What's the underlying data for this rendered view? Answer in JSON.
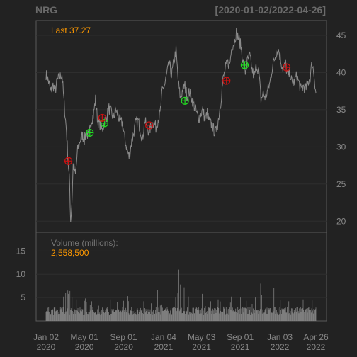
{
  "header": {
    "symbol": "NRG",
    "range": "[2020-01-02/2022-04-26]"
  },
  "price_panel": {
    "last_label": "Last 37.27"
  },
  "volume_panel": {
    "label": "Volume (millions):",
    "last_value": "2,558,500"
  },
  "colors": {
    "background": "#222222",
    "price_line": "#8a8a8a",
    "volume_bars": "#8a8a8a",
    "accent": "#ff9900",
    "buy_marker": "#22dd22",
    "sell_marker": "#cc1111",
    "axis_text": "#888888"
  },
  "chart_data": [
    {
      "type": "line",
      "name": "price",
      "ylim": [
        18.5,
        47
      ],
      "yticks": [
        20,
        25,
        30,
        35,
        40,
        45
      ],
      "x_dates": [
        "2020-01-02",
        "2020-05-01",
        "2020-09-01",
        "2021-01-04",
        "2021-05-03",
        "2021-09-01",
        "2022-01-03",
        "2022-04-26"
      ],
      "x_tick_labels": [
        {
          "date": "2020-01-02",
          "month": "Jan 02",
          "year": "2020"
        },
        {
          "date": "2020-05-01",
          "month": "May 01",
          "year": "2020"
        },
        {
          "date": "2020-09-01",
          "month": "Sep 01",
          "year": "2020"
        },
        {
          "date": "2021-01-04",
          "month": "Jan 04",
          "year": "2021"
        },
        {
          "date": "2021-05-03",
          "month": "May 03",
          "year": "2021"
        },
        {
          "date": "2021-09-01",
          "month": "Sep 01",
          "year": "2021"
        },
        {
          "date": "2022-01-03",
          "month": "Jan 03",
          "year": "2022"
        },
        {
          "date": "2022-04-26",
          "month": "Apr 26",
          "year": "2022"
        }
      ],
      "points": [
        [
          "2020-01-02",
          39.8
        ],
        [
          "2020-01-10",
          38.8
        ],
        [
          "2020-01-17",
          37.4
        ],
        [
          "2020-01-24",
          38.3
        ],
        [
          "2020-01-31",
          37.6
        ],
        [
          "2020-02-07",
          39.0
        ],
        [
          "2020-02-14",
          39.4
        ],
        [
          "2020-02-21",
          39.8
        ],
        [
          "2020-02-28",
          35.6
        ],
        [
          "2020-03-06",
          32.2
        ],
        [
          "2020-03-11",
          28.2
        ],
        [
          "2020-03-16",
          24.8
        ],
        [
          "2020-03-19",
          20.0
        ],
        [
          "2020-03-23",
          22.5
        ],
        [
          "2020-03-27",
          27.6
        ],
        [
          "2020-04-03",
          26.2
        ],
        [
          "2020-04-10",
          29.6
        ],
        [
          "2020-04-17",
          30.8
        ],
        [
          "2020-04-24",
          31.6
        ],
        [
          "2020-05-01",
          31.0
        ],
        [
          "2020-05-08",
          32.0
        ],
        [
          "2020-05-15",
          31.2
        ],
        [
          "2020-05-22",
          33.5
        ],
        [
          "2020-05-29",
          34.2
        ],
        [
          "2020-06-05",
          36.4
        ],
        [
          "2020-06-12",
          33.4
        ],
        [
          "2020-06-19",
          33.0
        ],
        [
          "2020-06-26",
          32.2
        ],
        [
          "2020-07-03",
          33.4
        ],
        [
          "2020-07-10",
          34.1
        ],
        [
          "2020-07-17",
          35.2
        ],
        [
          "2020-07-24",
          34.6
        ],
        [
          "2020-07-31",
          33.9
        ],
        [
          "2020-08-07",
          35.0
        ],
        [
          "2020-08-14",
          34.3
        ],
        [
          "2020-08-21",
          33.4
        ],
        [
          "2020-08-28",
          33.2
        ],
        [
          "2020-09-04",
          31.2
        ],
        [
          "2020-09-11",
          29.8
        ],
        [
          "2020-09-18",
          28.6
        ],
        [
          "2020-09-25",
          30.5
        ],
        [
          "2020-10-02",
          31.8
        ],
        [
          "2020-10-09",
          33.2
        ],
        [
          "2020-10-16",
          33.6
        ],
        [
          "2020-10-23",
          32.4
        ],
        [
          "2020-10-30",
          31.0
        ],
        [
          "2020-11-06",
          33.6
        ],
        [
          "2020-11-13",
          32.6
        ],
        [
          "2020-11-20",
          32.0
        ],
        [
          "2020-11-27",
          33.0
        ],
        [
          "2020-12-04",
          33.4
        ],
        [
          "2020-12-11",
          32.6
        ],
        [
          "2020-12-18",
          33.8
        ],
        [
          "2020-12-24",
          34.4
        ],
        [
          "2020-12-31",
          37.6
        ],
        [
          "2021-01-08",
          38.4
        ],
        [
          "2021-01-15",
          40.0
        ],
        [
          "2021-01-22",
          41.2
        ],
        [
          "2021-01-29",
          39.6
        ],
        [
          "2021-02-05",
          41.4
        ],
        [
          "2021-02-12",
          43.0
        ],
        [
          "2021-02-19",
          38.8
        ],
        [
          "2021-02-26",
          36.4
        ],
        [
          "2021-03-05",
          37.8
        ],
        [
          "2021-03-12",
          38.2
        ],
        [
          "2021-03-19",
          36.8
        ],
        [
          "2021-03-26",
          37.4
        ],
        [
          "2021-04-02",
          36.6
        ],
        [
          "2021-04-09",
          35.6
        ],
        [
          "2021-04-16",
          34.8
        ],
        [
          "2021-04-23",
          33.8
        ],
        [
          "2021-04-30",
          34.4
        ],
        [
          "2021-05-07",
          35.0
        ],
        [
          "2021-05-14",
          33.6
        ],
        [
          "2021-05-21",
          34.6
        ],
        [
          "2021-05-28",
          33.2
        ],
        [
          "2021-06-04",
          33.0
        ],
        [
          "2021-06-11",
          32.2
        ],
        [
          "2021-06-18",
          32.0
        ],
        [
          "2021-06-25",
          33.8
        ],
        [
          "2021-07-02",
          36.0
        ],
        [
          "2021-07-09",
          39.0
        ],
        [
          "2021-07-16",
          40.4
        ],
        [
          "2021-07-23",
          41.4
        ],
        [
          "2021-07-30",
          41.0
        ],
        [
          "2021-08-06",
          43.6
        ],
        [
          "2021-08-13",
          44.0
        ],
        [
          "2021-08-20",
          45.5
        ],
        [
          "2021-08-27",
          44.6
        ],
        [
          "2021-09-03",
          43.6
        ],
        [
          "2021-09-10",
          41.4
        ],
        [
          "2021-09-17",
          40.0
        ],
        [
          "2021-09-24",
          41.6
        ],
        [
          "2021-10-01",
          42.2
        ],
        [
          "2021-10-08",
          40.4
        ],
        [
          "2021-10-15",
          39.4
        ],
        [
          "2021-10-22",
          41.0
        ],
        [
          "2021-10-29",
          40.2
        ],
        [
          "2021-11-05",
          36.4
        ],
        [
          "2021-11-12",
          37.2
        ],
        [
          "2021-11-19",
          36.6
        ],
        [
          "2021-11-26",
          37.6
        ],
        [
          "2021-12-03",
          38.6
        ],
        [
          "2021-12-10",
          40.6
        ],
        [
          "2021-12-17",
          41.8
        ],
        [
          "2021-12-24",
          42.8
        ],
        [
          "2021-12-31",
          43.0
        ],
        [
          "2022-01-07",
          41.4
        ],
        [
          "2022-01-14",
          40.4
        ],
        [
          "2022-01-21",
          41.2
        ],
        [
          "2022-01-28",
          39.4
        ],
        [
          "2022-02-04",
          40.0
        ],
        [
          "2022-02-11",
          38.4
        ],
        [
          "2022-02-18",
          38.8
        ],
        [
          "2022-02-25",
          39.6
        ],
        [
          "2022-03-04",
          38.6
        ],
        [
          "2022-03-11",
          37.6
        ],
        [
          "2022-03-18",
          38.2
        ],
        [
          "2022-03-25",
          37.8
        ],
        [
          "2022-04-01",
          38.6
        ],
        [
          "2022-04-08",
          39.4
        ],
        [
          "2022-04-14",
          41.4
        ],
        [
          "2022-04-20",
          39.8
        ],
        [
          "2022-04-26",
          37.27
        ]
      ],
      "buy_markers": [
        [
          "2020-05-18",
          31.9
        ],
        [
          "2020-07-03",
          33.2
        ],
        [
          "2021-03-12",
          36.2
        ],
        [
          "2021-09-15",
          41.0
        ]
      ],
      "sell_markers": [
        [
          "2020-03-12",
          28.1
        ],
        [
          "2020-06-26",
          33.9
        ],
        [
          "2020-11-20",
          32.9
        ],
        [
          "2021-07-20",
          38.9
        ],
        [
          "2022-01-24",
          40.7
        ]
      ]
    },
    {
      "type": "bar",
      "name": "volume",
      "ylabel": "Volume (millions):",
      "ylim": [
        0,
        19
      ],
      "yticks": [
        5,
        10,
        15
      ],
      "baseline_low": 1.2,
      "baseline_high": 3.0,
      "spikes": [
        [
          "2020-02-27",
          5.2
        ],
        [
          "2020-03-05",
          6.0
        ],
        [
          "2020-03-11",
          6.5
        ],
        [
          "2020-03-13",
          5.8
        ],
        [
          "2020-03-18",
          6.4
        ],
        [
          "2020-03-24",
          5.0
        ],
        [
          "2020-04-07",
          4.6
        ],
        [
          "2020-04-21",
          4.4
        ],
        [
          "2020-05-05",
          4.8
        ],
        [
          "2020-05-26",
          4.2
        ],
        [
          "2020-06-15",
          4.5
        ],
        [
          "2020-07-21",
          4.6
        ],
        [
          "2020-08-12",
          4.0
        ],
        [
          "2020-09-01",
          4.3
        ],
        [
          "2020-09-15",
          5.3
        ],
        [
          "2020-11-03",
          4.2
        ],
        [
          "2020-12-18",
          6.6
        ],
        [
          "2021-01-12",
          4.4
        ],
        [
          "2021-02-11",
          5.0
        ],
        [
          "2021-02-17",
          5.9
        ],
        [
          "2021-02-23",
          11.0
        ],
        [
          "2021-02-26",
          7.8
        ],
        [
          "2021-03-08",
          17.6
        ],
        [
          "2021-03-10",
          7.2
        ],
        [
          "2021-03-22",
          5.2
        ],
        [
          "2021-05-06",
          5.8
        ],
        [
          "2021-06-01",
          4.2
        ],
        [
          "2021-06-24",
          4.6
        ],
        [
          "2021-08-05",
          5.2
        ],
        [
          "2021-09-03",
          5.0
        ],
        [
          "2021-09-20",
          4.3
        ],
        [
          "2021-10-20",
          5.0
        ],
        [
          "2021-11-04",
          8.0
        ],
        [
          "2021-11-09",
          5.6
        ],
        [
          "2021-12-17",
          7.0
        ],
        [
          "2022-01-05",
          4.5
        ],
        [
          "2022-02-01",
          4.2
        ],
        [
          "2022-03-15",
          10.6
        ],
        [
          "2022-03-17",
          4.6
        ],
        [
          "2022-04-14",
          4.4
        ]
      ]
    }
  ]
}
